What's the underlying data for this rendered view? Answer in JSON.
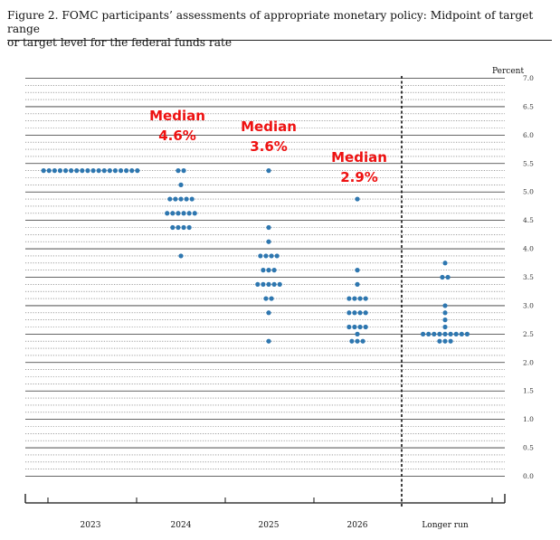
{
  "figure": {
    "title_line1": "Figure 2.  FOMC participants’ assessments of appropriate monetary policy:  Midpoint of target range",
    "title_line2": "or target level for the federal funds rate"
  },
  "chart_data": {
    "type": "scatter",
    "subtype": "dot_plot",
    "ylabel": "Percent",
    "ylim": [
      0.0,
      7.0
    ],
    "yticks": [
      "0.0",
      "0.5",
      "1.0",
      "1.5",
      "2.0",
      "2.5",
      "3.0",
      "3.5",
      "4.0",
      "4.5",
      "5.0",
      "5.5",
      "6.0",
      "6.5",
      "7.0"
    ],
    "grid": true,
    "categories": [
      "2023",
      "2024",
      "2025",
      "2026",
      "Longer run"
    ],
    "dot_color": "#2e77b0",
    "annotation_color": "#ee1111",
    "series": [
      {
        "name": "2023",
        "points": [
          {
            "y": 5.375,
            "count": 18
          }
        ]
      },
      {
        "name": "2024",
        "points": [
          {
            "y": 5.375,
            "count": 2
          },
          {
            "y": 5.125,
            "count": 1
          },
          {
            "y": 4.875,
            "count": 5
          },
          {
            "y": 4.625,
            "count": 6
          },
          {
            "y": 4.375,
            "count": 4
          },
          {
            "y": 3.875,
            "count": 1
          }
        ]
      },
      {
        "name": "2025",
        "points": [
          {
            "y": 5.375,
            "count": 1
          },
          {
            "y": 4.375,
            "count": 1
          },
          {
            "y": 4.125,
            "count": 1
          },
          {
            "y": 3.875,
            "count": 4
          },
          {
            "y": 3.625,
            "count": 3
          },
          {
            "y": 3.375,
            "count": 5
          },
          {
            "y": 3.125,
            "count": 2
          },
          {
            "y": 2.875,
            "count": 1
          },
          {
            "y": 2.375,
            "count": 1
          }
        ]
      },
      {
        "name": "2026",
        "points": [
          {
            "y": 4.875,
            "count": 1
          },
          {
            "y": 3.625,
            "count": 1
          },
          {
            "y": 3.375,
            "count": 1
          },
          {
            "y": 3.125,
            "count": 4
          },
          {
            "y": 2.875,
            "count": 4
          },
          {
            "y": 2.625,
            "count": 4
          },
          {
            "y": 2.5,
            "count": 1
          },
          {
            "y": 2.375,
            "count": 3
          }
        ]
      },
      {
        "name": "Longer run",
        "points": [
          {
            "y": 3.75,
            "count": 1
          },
          {
            "y": 3.5,
            "count": 2
          },
          {
            "y": 3.0,
            "count": 1
          },
          {
            "y": 2.875,
            "count": 1
          },
          {
            "y": 2.75,
            "count": 1
          },
          {
            "y": 2.625,
            "count": 1
          },
          {
            "y": 2.5,
            "count": 9
          },
          {
            "y": 2.375,
            "count": 3
          }
        ]
      }
    ],
    "annotations": [
      {
        "category": "2024",
        "label": "Median",
        "value_text": "4.6%"
      },
      {
        "category": "2025",
        "label": "Median",
        "value_text": "3.6%"
      },
      {
        "category": "2026",
        "label": "Median",
        "value_text": "2.9%"
      }
    ]
  }
}
